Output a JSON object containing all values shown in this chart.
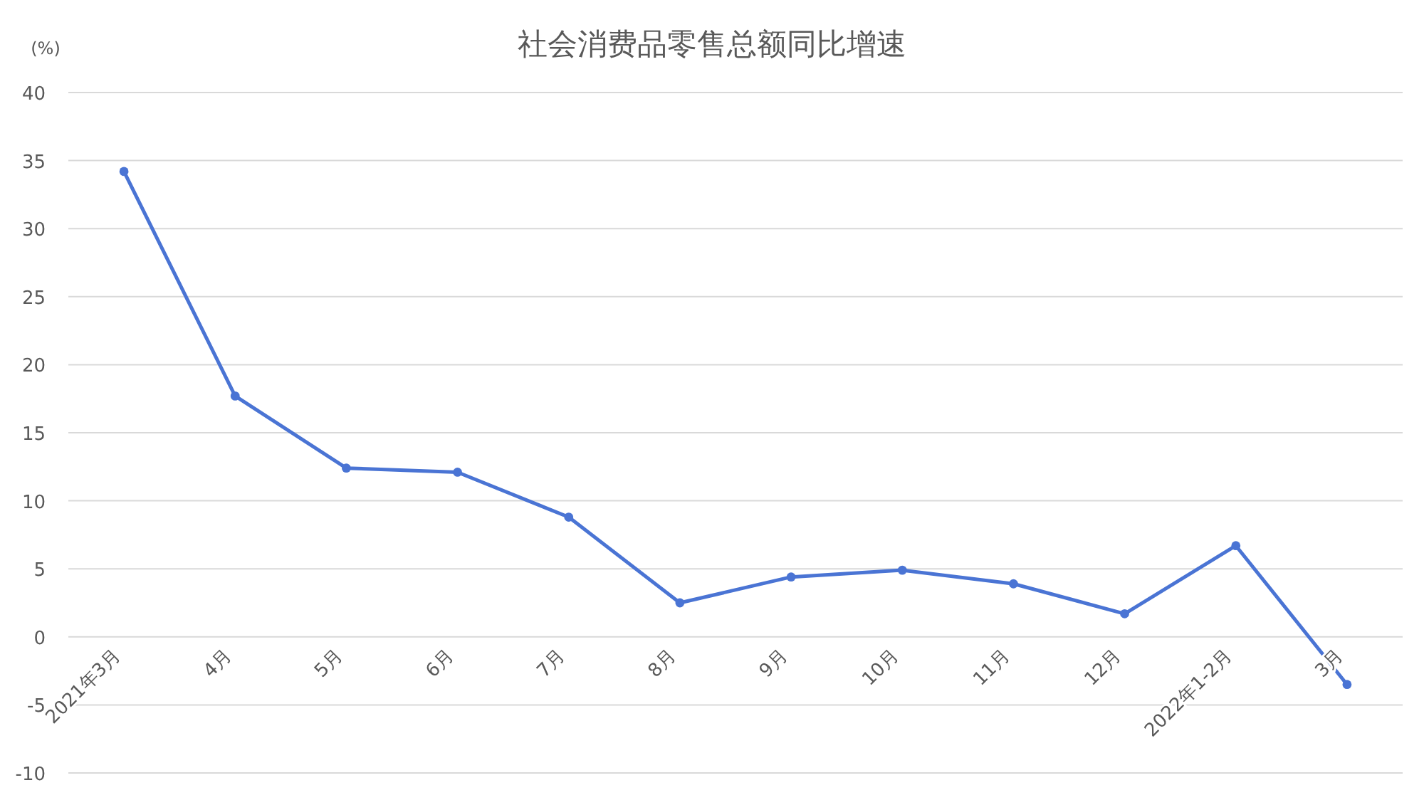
{
  "chart_data": {
    "type": "line",
    "title": "社会消费品零售总额同比增速",
    "ylabel": "(%)",
    "categories": [
      "2021年3月",
      "4月",
      "5月",
      "6月",
      "7月",
      "8月",
      "9月",
      "10月",
      "11月",
      "12月",
      "2022年1-2月",
      "3月"
    ],
    "series": [
      {
        "color": "#4a74d4",
        "values": [
          34.2,
          17.7,
          12.4,
          12.1,
          8.8,
          2.5,
          4.4,
          4.9,
          3.9,
          1.7,
          6.7,
          -3.5
        ]
      }
    ],
    "ylim": [
      -10,
      40
    ],
    "yticks": [
      -10,
      -5,
      0,
      5,
      10,
      15,
      20,
      25,
      30,
      35,
      40
    ],
    "grid": "y",
    "marker": "circle"
  }
}
